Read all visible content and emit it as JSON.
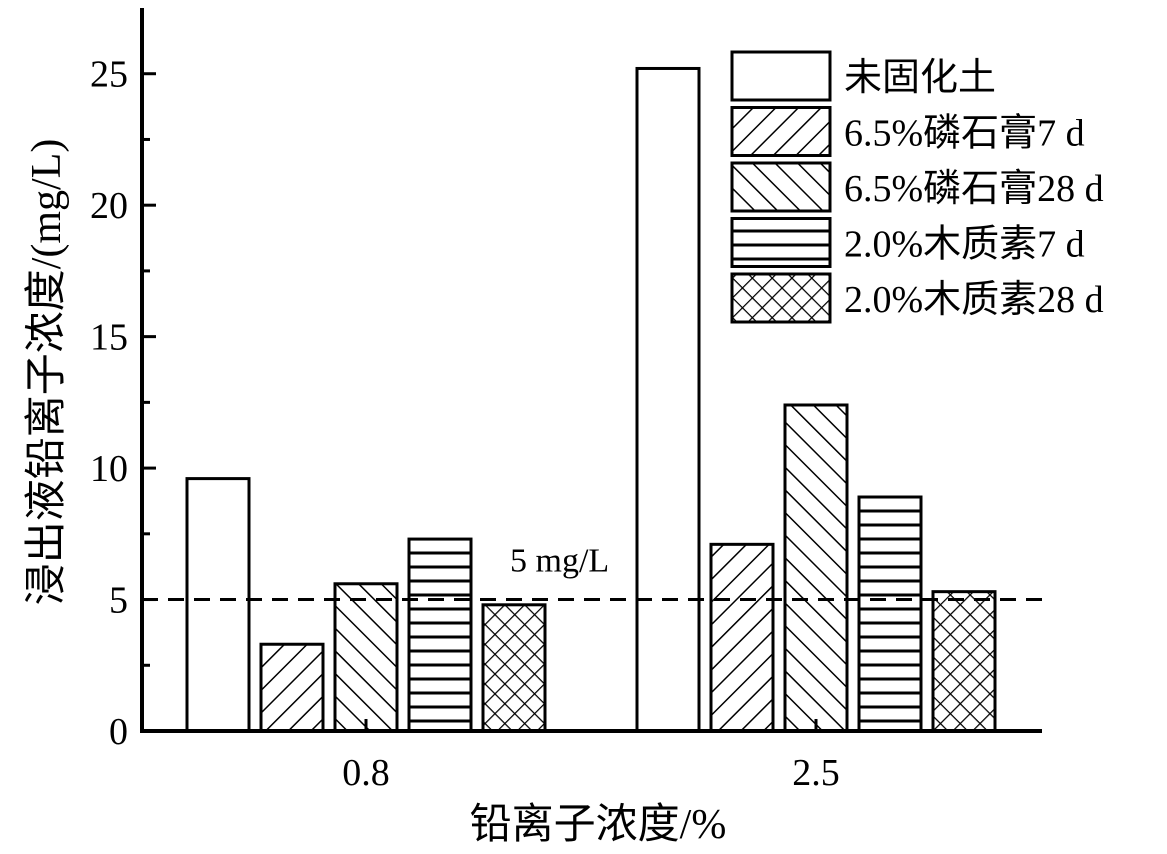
{
  "chart_data": {
    "type": "bar",
    "xlabel": "铅离子浓度/%",
    "ylabel": "浸出液铅离子浓度/(mg/L)",
    "ylim": [
      0,
      27.5
    ],
    "yticks": [
      "0",
      "5",
      "10",
      "15",
      "20",
      "25"
    ],
    "categories": [
      "0.8",
      "2.5"
    ],
    "series": [
      {
        "name": "未固化土",
        "values": [
          9.6,
          25.2
        ],
        "pattern": "none"
      },
      {
        "name": "6.5%磷石膏7 d",
        "values": [
          3.3,
          7.1
        ],
        "pattern": "diag-forward"
      },
      {
        "name": "6.5%磷石膏28 d",
        "values": [
          5.6,
          12.4
        ],
        "pattern": "diag-back"
      },
      {
        "name": "2.0%木质素7 d",
        "values": [
          7.3,
          8.9
        ],
        "pattern": "horizontal"
      },
      {
        "name": "2.0%木质素28 d",
        "values": [
          4.8,
          5.3
        ],
        "pattern": "crosshatch"
      }
    ],
    "reference_line": {
      "value": 5,
      "label": "5 mg/L",
      "style": "dashed"
    },
    "legend_position": "top-right",
    "grid": false
  }
}
